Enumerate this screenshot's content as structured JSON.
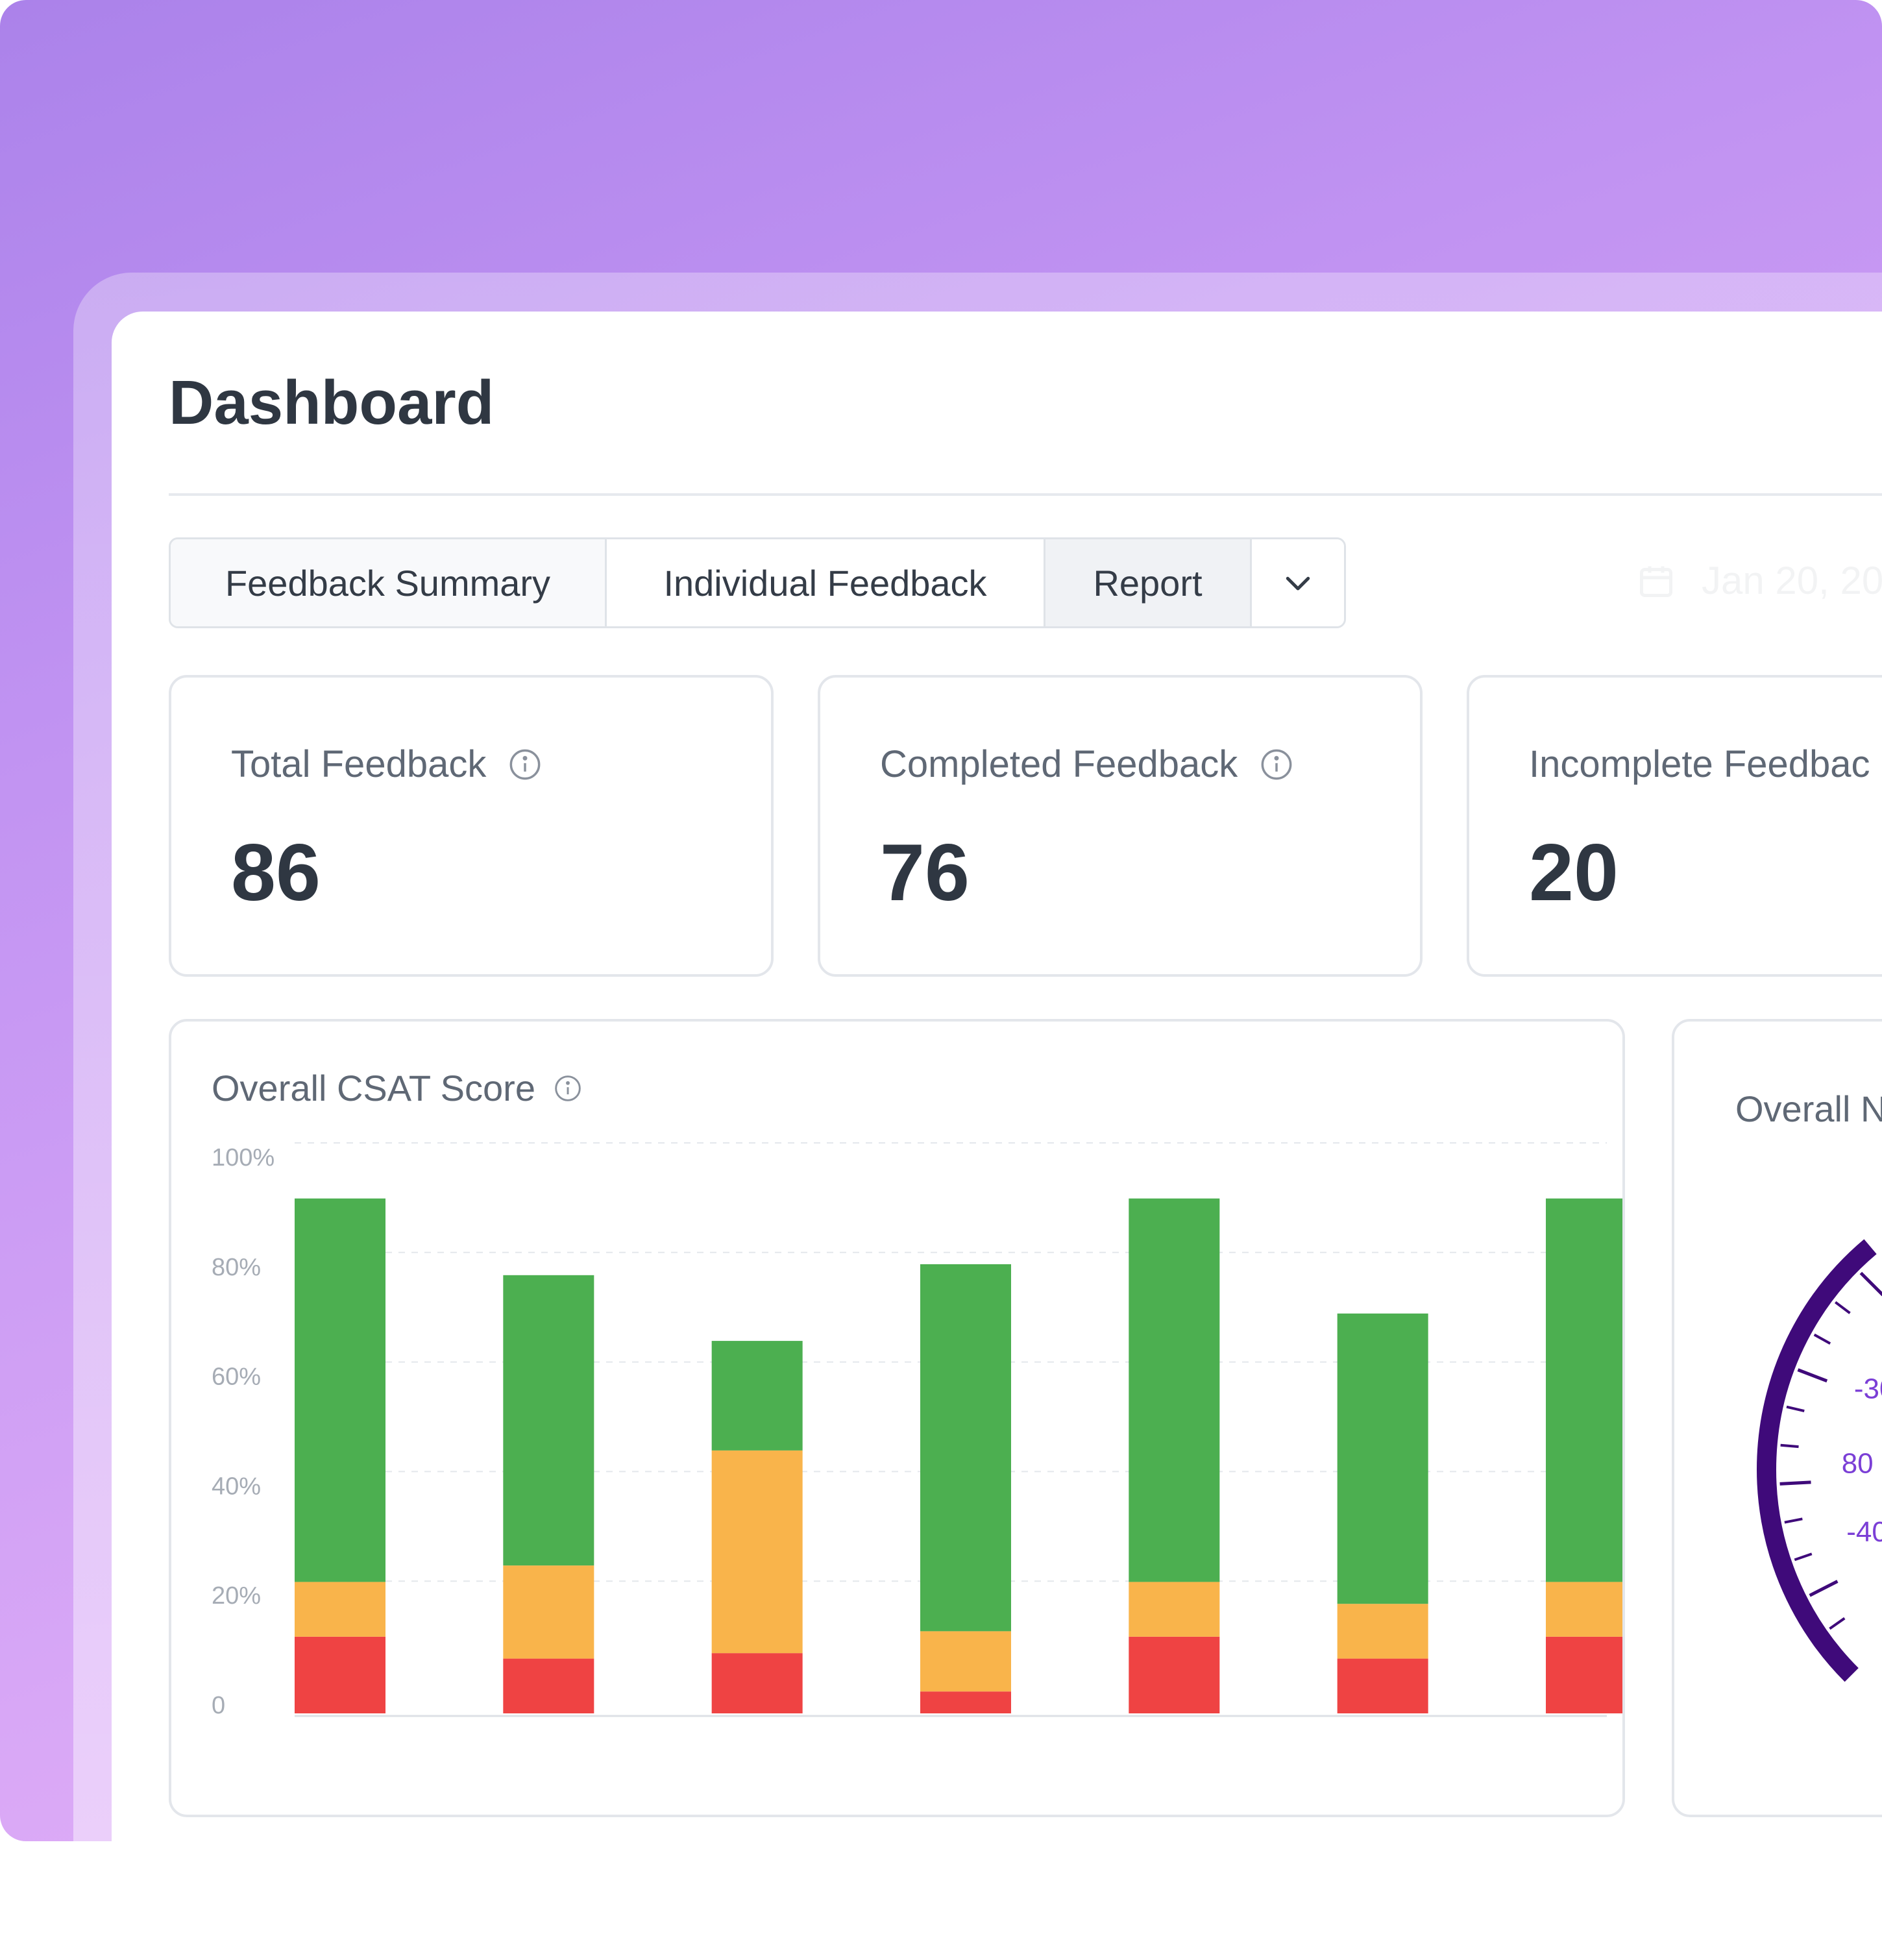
{
  "page": {
    "title": "Dashboard",
    "tabs": [
      {
        "label": "Feedback Summary"
      },
      {
        "label": "Individual Feedback"
      },
      {
        "label": "Report"
      }
    ],
    "tab_more_icon": "chevron-down-icon",
    "date_range": "Jan 20, 20"
  },
  "stats": [
    {
      "label": "Total Feedback",
      "value": "86",
      "icon": "info-icon"
    },
    {
      "label": "Completed Feedback",
      "value": "76",
      "icon": "info-icon"
    },
    {
      "label": "Incomplete Feedbac",
      "value": "20",
      "icon": "info-icon"
    }
  ],
  "csat": {
    "title": "Overall CSAT Score",
    "icon": "info-icon"
  },
  "chart_data": {
    "type": "bar",
    "stacked": true,
    "ylim": [
      0,
      100
    ],
    "y_ticks": [
      "100%",
      "80%",
      "60%",
      "40%",
      "20%",
      "0"
    ],
    "grid": true,
    "categories": [
      "",
      "",
      "",
      "",
      "",
      "",
      ""
    ],
    "series": [
      {
        "color": "#ef4343",
        "values": [
          14,
          10,
          11,
          4,
          14,
          10,
          14
        ]
      },
      {
        "color": "#f9b44b",
        "values": [
          10,
          17,
          37,
          11,
          10,
          10,
          10
        ]
      },
      {
        "color": "#4caf50",
        "values": [
          70,
          53,
          20,
          67,
          70,
          53,
          70
        ]
      }
    ]
  },
  "gauge": {
    "title": "Overall N",
    "tick_labels": [
      "-30",
      "80",
      "-40",
      "-"
    ],
    "color": "#3f0a7a",
    "label_color": "#7b3fd6"
  },
  "colors": {
    "text_primary": "#2f3742",
    "text_secondary": "#5f6875",
    "border": "#e3e6eb",
    "green": "#4caf50",
    "orange": "#f9b44b",
    "red": "#ef4343"
  }
}
